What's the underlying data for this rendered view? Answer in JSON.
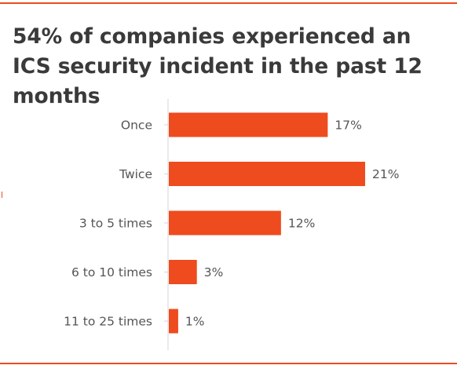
{
  "colors": {
    "accent": "#ee4b1f",
    "text": "#3a3a3a",
    "label": "#555555",
    "axis": "#d4d4d4"
  },
  "title": "54% of companies experienced an ICS security incident in the past 12 months",
  "chart_data": {
    "type": "bar",
    "orientation": "horizontal",
    "title": "54% of companies experienced an ICS security incident in the past 12 months",
    "categories": [
      "Once",
      "Twice",
      "3 to 5 times",
      "6 to 10 times",
      "11 to 25 times"
    ],
    "values": [
      17,
      21,
      12,
      3,
      1
    ],
    "value_labels": [
      "17%",
      "21%",
      "12%",
      "3%",
      "1%"
    ],
    "unit": "%",
    "xlim": [
      0,
      21
    ],
    "grid": false,
    "legend": "none"
  }
}
